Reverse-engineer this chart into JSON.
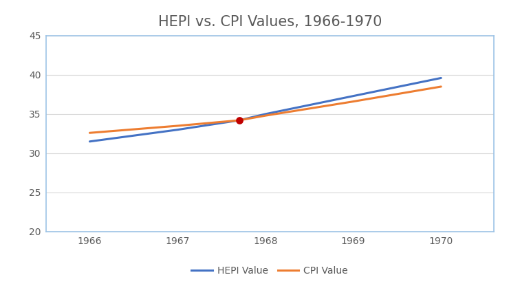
{
  "title": "HEPI vs. CPI Values, 1966-1970",
  "hepi_x": [
    1966,
    1967,
    1967.7,
    1968,
    1969,
    1970
  ],
  "hepi_y": [
    31.5,
    33.0,
    34.2,
    35.0,
    37.3,
    39.6
  ],
  "cpi_x": [
    1966,
    1967,
    1967.7,
    1968,
    1969,
    1970
  ],
  "cpi_y": [
    32.6,
    33.5,
    34.2,
    34.8,
    36.6,
    38.5
  ],
  "intersection_x": 1967.7,
  "intersection_y": 34.2,
  "hepi_color": "#4472C4",
  "cpi_color": "#ED7D31",
  "dot_color": "#C00000",
  "title_color": "#595959",
  "tick_color": "#595959",
  "spine_color": "#9DC3E6",
  "grid_color": "#D9D9D9",
  "xlim": [
    1965.5,
    1970.6
  ],
  "ylim": [
    20,
    45
  ],
  "yticks": [
    20,
    25,
    30,
    35,
    40,
    45
  ],
  "xticks": [
    1966,
    1967,
    1968,
    1969,
    1970
  ],
  "hepi_label": "HEPI Value",
  "cpi_label": "CPI Value",
  "title_fontsize": 15,
  "tick_fontsize": 10,
  "legend_fontsize": 10,
  "line_width": 2.2,
  "dot_size": 60
}
